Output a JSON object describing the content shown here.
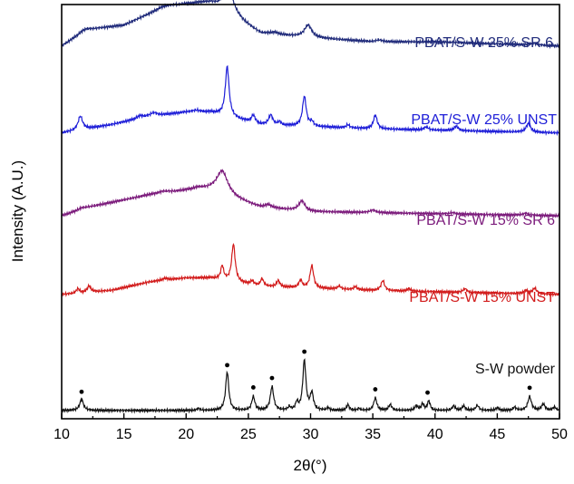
{
  "chart_data": {
    "type": "line",
    "xlabel": "2θ(°)",
    "ylabel": "Intensity (A.U.)",
    "xlim": [
      10,
      50
    ],
    "x_ticks": [
      "10",
      "15",
      "20",
      "25",
      "30",
      "35",
      "40",
      "45",
      "50"
    ],
    "y_ticks_shown": false,
    "grid": false,
    "legend": "none",
    "series": [
      {
        "name": "PBAT/S-W 25% SR 6",
        "color": "#1f2a7a",
        "baseline": 0.9,
        "background": [
          [
            10,
            0
          ],
          [
            12,
            0.04
          ],
          [
            15,
            0.05
          ],
          [
            18,
            0.09
          ],
          [
            20,
            0.1
          ],
          [
            22,
            0.1
          ],
          [
            26,
            0.03
          ],
          [
            30,
            0.02
          ],
          [
            35,
            0.01
          ],
          [
            40,
            0.01
          ],
          [
            50,
            0
          ]
        ],
        "peaks": [
          {
            "x": 11.7,
            "h": 0.02,
            "w": 0.3
          },
          {
            "x": 18.6,
            "h": 0.03,
            "w": 0.8
          },
          {
            "x": 21.2,
            "h": 0.02,
            "w": 0.6
          },
          {
            "x": 23.4,
            "h": 0.4,
            "w": 0.55
          },
          {
            "x": 27.1,
            "h": 0.03,
            "w": 0.4
          },
          {
            "x": 29.8,
            "h": 0.2,
            "w": 0.35
          },
          {
            "x": 35.5,
            "h": 0.03,
            "w": 0.3
          },
          {
            "x": 47.9,
            "h": 0.03,
            "w": 0.35
          }
        ]
      },
      {
        "name": "PBAT/S-W 25% UNST",
        "color": "#1d1dd8",
        "baseline": 0.69,
        "background": [
          [
            10,
            0
          ],
          [
            14,
            0.02
          ],
          [
            17,
            0.04
          ],
          [
            20,
            0.05
          ],
          [
            22,
            0.05
          ],
          [
            26,
            0.02
          ],
          [
            35,
            0.01
          ],
          [
            50,
            0
          ]
        ],
        "peaks": [
          {
            "x": 11.5,
            "h": 0.22,
            "w": 0.22
          },
          {
            "x": 16.3,
            "h": 0.04,
            "w": 0.3
          },
          {
            "x": 17.4,
            "h": 0.05,
            "w": 0.3
          },
          {
            "x": 20.8,
            "h": 0.03,
            "w": 0.4
          },
          {
            "x": 23.3,
            "h": 0.8,
            "w": 0.18
          },
          {
            "x": 25.4,
            "h": 0.12,
            "w": 0.18
          },
          {
            "x": 26.8,
            "h": 0.16,
            "w": 0.2
          },
          {
            "x": 27.5,
            "h": 0.05,
            "w": 0.15
          },
          {
            "x": 29.5,
            "h": 0.48,
            "w": 0.18
          },
          {
            "x": 30.1,
            "h": 0.07,
            "w": 0.15
          },
          {
            "x": 33.0,
            "h": 0.05,
            "w": 0.15
          },
          {
            "x": 35.2,
            "h": 0.22,
            "w": 0.18
          },
          {
            "x": 39.3,
            "h": 0.05,
            "w": 0.2
          },
          {
            "x": 41.7,
            "h": 0.07,
            "w": 0.2
          },
          {
            "x": 47.5,
            "h": 0.14,
            "w": 0.22
          }
        ]
      },
      {
        "name": "PBAT/S-W 15% SR 6",
        "color": "#7b1a7b",
        "baseline": 0.49,
        "background": [
          [
            10,
            0
          ],
          [
            12,
            0.02
          ],
          [
            17,
            0.05
          ],
          [
            20,
            0.06
          ],
          [
            22,
            0.06
          ],
          [
            26,
            0.02
          ],
          [
            30,
            0.01
          ],
          [
            50,
            0
          ]
        ],
        "peaks": [
          {
            "x": 11.6,
            "h": 0.02,
            "w": 0.3
          },
          {
            "x": 18.2,
            "h": 0.03,
            "w": 0.6
          },
          {
            "x": 21.0,
            "h": 0.04,
            "w": 0.6
          },
          {
            "x": 22.9,
            "h": 0.38,
            "w": 0.55
          },
          {
            "x": 26.6,
            "h": 0.05,
            "w": 0.35
          },
          {
            "x": 29.3,
            "h": 0.16,
            "w": 0.3
          },
          {
            "x": 35.0,
            "h": 0.04,
            "w": 0.3
          },
          {
            "x": 41.4,
            "h": 0.02,
            "w": 0.3
          },
          {
            "x": 47.3,
            "h": 0.03,
            "w": 0.3
          }
        ]
      },
      {
        "name": "PBAT/S-W 15% UNST",
        "color": "#d21b1b",
        "baseline": 0.3,
        "background": [
          [
            10,
            0
          ],
          [
            14,
            0.01
          ],
          [
            17,
            0.03
          ],
          [
            20,
            0.04
          ],
          [
            22,
            0.04
          ],
          [
            26,
            0.02
          ],
          [
            35,
            0.01
          ],
          [
            50,
            0
          ]
        ],
        "peaks": [
          {
            "x": 11.3,
            "h": 0.07,
            "w": 0.15
          },
          {
            "x": 12.2,
            "h": 0.1,
            "w": 0.18
          },
          {
            "x": 18.3,
            "h": 0.03,
            "w": 0.3
          },
          {
            "x": 22.9,
            "h": 0.22,
            "w": 0.14
          },
          {
            "x": 23.8,
            "h": 0.6,
            "w": 0.17
          },
          {
            "x": 25.3,
            "h": 0.06,
            "w": 0.15
          },
          {
            "x": 26.1,
            "h": 0.12,
            "w": 0.15
          },
          {
            "x": 27.4,
            "h": 0.1,
            "w": 0.15
          },
          {
            "x": 29.2,
            "h": 0.12,
            "w": 0.15
          },
          {
            "x": 30.1,
            "h": 0.36,
            "w": 0.17
          },
          {
            "x": 32.3,
            "h": 0.05,
            "w": 0.15
          },
          {
            "x": 33.6,
            "h": 0.05,
            "w": 0.15
          },
          {
            "x": 35.8,
            "h": 0.16,
            "w": 0.17
          },
          {
            "x": 37.9,
            "h": 0.04,
            "w": 0.15
          },
          {
            "x": 42.4,
            "h": 0.06,
            "w": 0.18
          },
          {
            "x": 47.3,
            "h": 0.05,
            "w": 0.18
          },
          {
            "x": 48.0,
            "h": 0.09,
            "w": 0.2
          }
        ]
      },
      {
        "name": "S-W powder",
        "color": "#111111",
        "baseline": 0.02,
        "background": [
          [
            10,
            0
          ],
          [
            50,
            0
          ]
        ],
        "peaks": [
          {
            "x": 11.6,
            "h": 0.18,
            "w": 0.18
          },
          {
            "x": 21.0,
            "h": 0.03,
            "w": 0.15
          },
          {
            "x": 23.3,
            "h": 0.62,
            "w": 0.15
          },
          {
            "x": 25.4,
            "h": 0.22,
            "w": 0.15
          },
          {
            "x": 26.9,
            "h": 0.38,
            "w": 0.16
          },
          {
            "x": 28.3,
            "h": 0.05,
            "w": 0.12
          },
          {
            "x": 28.9,
            "h": 0.12,
            "w": 0.12
          },
          {
            "x": 29.5,
            "h": 0.8,
            "w": 0.15
          },
          {
            "x": 30.1,
            "h": 0.27,
            "w": 0.15
          },
          {
            "x": 31.4,
            "h": 0.04,
            "w": 0.12
          },
          {
            "x": 33.0,
            "h": 0.09,
            "w": 0.13
          },
          {
            "x": 33.9,
            "h": 0.03,
            "w": 0.12
          },
          {
            "x": 35.2,
            "h": 0.2,
            "w": 0.15
          },
          {
            "x": 36.4,
            "h": 0.09,
            "w": 0.15
          },
          {
            "x": 38.5,
            "h": 0.07,
            "w": 0.15
          },
          {
            "x": 39.0,
            "h": 0.1,
            "w": 0.13
          },
          {
            "x": 39.5,
            "h": 0.15,
            "w": 0.13
          },
          {
            "x": 41.5,
            "h": 0.07,
            "w": 0.15
          },
          {
            "x": 42.3,
            "h": 0.07,
            "w": 0.15
          },
          {
            "x": 43.4,
            "h": 0.08,
            "w": 0.15
          },
          {
            "x": 45.0,
            "h": 0.04,
            "w": 0.15
          },
          {
            "x": 46.4,
            "h": 0.05,
            "w": 0.15
          },
          {
            "x": 47.6,
            "h": 0.22,
            "w": 0.17
          },
          {
            "x": 48.7,
            "h": 0.1,
            "w": 0.17
          },
          {
            "x": 49.6,
            "h": 0.05,
            "w": 0.15
          }
        ],
        "markers_at_x": [
          11.6,
          23.3,
          25.4,
          26.9,
          29.5,
          35.2,
          39.4,
          47.6
        ]
      }
    ]
  }
}
